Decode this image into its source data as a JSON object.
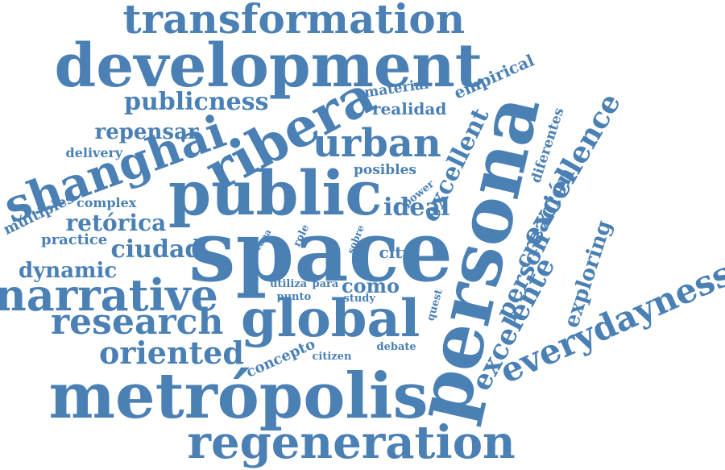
{
  "cloud": {
    "color": "#4a80b4",
    "words": [
      {
        "text": "transformation",
        "orientation": "horizontal"
      },
      {
        "text": "development",
        "orientation": "horizontal"
      },
      {
        "text": "publicness",
        "orientation": "horizontal"
      },
      {
        "text": "ribera",
        "orientation": "rotated"
      },
      {
        "text": "material",
        "orientation": "rotated"
      },
      {
        "text": "empirical",
        "orientation": "rotated"
      },
      {
        "text": "realidad",
        "orientation": "horizontal"
      },
      {
        "text": "repensar",
        "orientation": "horizontal"
      },
      {
        "text": "urban",
        "orientation": "horizontal"
      },
      {
        "text": "delivery",
        "orientation": "horizontal"
      },
      {
        "text": "shanghai",
        "orientation": "rotated"
      },
      {
        "text": "posibles",
        "orientation": "horizontal"
      },
      {
        "text": "excellent",
        "orientation": "rotated"
      },
      {
        "text": "diferentes",
        "orientation": "rotated"
      },
      {
        "text": "excellence",
        "orientation": "rotated"
      },
      {
        "text": "persona",
        "orientation": "rotated"
      },
      {
        "text": "public",
        "orientation": "horizontal"
      },
      {
        "text": "power",
        "orientation": "rotated"
      },
      {
        "text": "complex",
        "orientation": "horizontal"
      },
      {
        "text": "múltiples",
        "orientation": "rotated"
      },
      {
        "text": "ideal",
        "orientation": "horizontal"
      },
      {
        "text": "retórica",
        "orientation": "horizontal"
      },
      {
        "text": "creación",
        "orientation": "rotated"
      },
      {
        "text": "practice",
        "orientation": "horizontal"
      },
      {
        "text": "capa",
        "orientation": "rotated"
      },
      {
        "text": "role",
        "orientation": "rotated"
      },
      {
        "text": "sobre",
        "orientation": "rotated"
      },
      {
        "text": "ciudad",
        "orientation": "horizontal"
      },
      {
        "text": "space",
        "orientation": "horizontal"
      },
      {
        "text": "city",
        "orientation": "horizontal"
      },
      {
        "text": "dynamic",
        "orientation": "horizontal"
      },
      {
        "text": "person",
        "orientation": "rotated"
      },
      {
        "text": "exploring",
        "orientation": "rotated"
      },
      {
        "text": "everydayness",
        "orientation": "rotated"
      },
      {
        "text": "narrative",
        "orientation": "horizontal"
      },
      {
        "text": "utiliza",
        "orientation": "horizontal"
      },
      {
        "text": "para",
        "orientation": "horizontal"
      },
      {
        "text": "como",
        "orientation": "horizontal"
      },
      {
        "text": "punto",
        "orientation": "horizontal"
      },
      {
        "text": "study",
        "orientation": "horizontal"
      },
      {
        "text": "quest",
        "orientation": "rotated"
      },
      {
        "text": "global",
        "orientation": "horizontal"
      },
      {
        "text": "research",
        "orientation": "horizontal"
      },
      {
        "text": "excelente",
        "orientation": "rotated"
      },
      {
        "text": "oriented",
        "orientation": "horizontal"
      },
      {
        "text": "concepto",
        "orientation": "rotated"
      },
      {
        "text": "citizen",
        "orientation": "horizontal"
      },
      {
        "text": "debate",
        "orientation": "horizontal"
      },
      {
        "text": "metrópolis",
        "orientation": "horizontal"
      },
      {
        "text": "regeneration",
        "orientation": "horizontal"
      }
    ]
  }
}
